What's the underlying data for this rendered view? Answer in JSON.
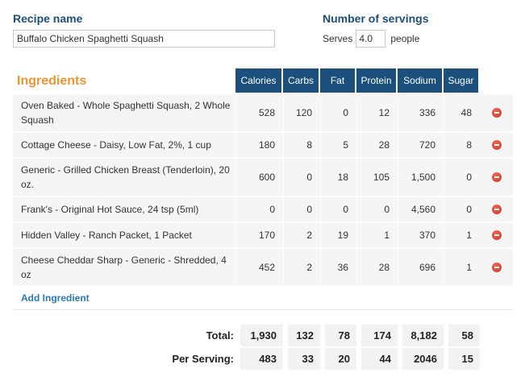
{
  "recipe": {
    "name_label": "Recipe name",
    "name_value": "Buffalo Chicken Spaghetti Squash"
  },
  "servings": {
    "label": "Number of servings",
    "serves_text": "Serves",
    "value": "4.0",
    "unit": "people"
  },
  "ingredients": {
    "title": "Ingredients",
    "columns": [
      "Calories",
      "Carbs",
      "Fat",
      "Protein",
      "Sodium",
      "Sugar"
    ],
    "items": [
      {
        "name": "Oven Baked - Whole Spaghetti Squash, 2 Whole Squash",
        "values": [
          "528",
          "120",
          "0",
          "12",
          "336",
          "48"
        ]
      },
      {
        "name": "Cottage Cheese - Daisy, Low Fat, 2%, 1 cup",
        "values": [
          "180",
          "8",
          "5",
          "28",
          "720",
          "8"
        ]
      },
      {
        "name": "Generic - Grilled Chicken Breast (Tenderloin), 20 oz.",
        "values": [
          "600",
          "0",
          "18",
          "105",
          "1,500",
          "0"
        ]
      },
      {
        "name": "Frank's - Original Hot Sauce, 24 tsp (5ml)",
        "values": [
          "0",
          "0",
          "0",
          "0",
          "4,560",
          "0"
        ]
      },
      {
        "name": "Hidden Valley - Ranch Packet, 1 Packet",
        "values": [
          "170",
          "2",
          "19",
          "1",
          "370",
          "1"
        ]
      },
      {
        "name": "Cheese Cheddar Sharp - Generic - Shredded, 4 oz",
        "values": [
          "452",
          "2",
          "36",
          "28",
          "696",
          "1"
        ]
      }
    ],
    "add_label": "Add Ingredient"
  },
  "totals": {
    "total_label": "Total:",
    "total_values": [
      "1,930",
      "132",
      "78",
      "174",
      "8,182",
      "58"
    ],
    "per_serving_label": "Per Serving:",
    "per_serving_values": [
      "483",
      "33",
      "20",
      "44",
      "2046",
      "15"
    ]
  },
  "colors": {
    "header_bg": "#1b4f7c",
    "accent_orange": "#f0922e",
    "label_blue": "#1d4f78",
    "link_blue": "#2a78b8",
    "remove_red": "#d9382b"
  }
}
